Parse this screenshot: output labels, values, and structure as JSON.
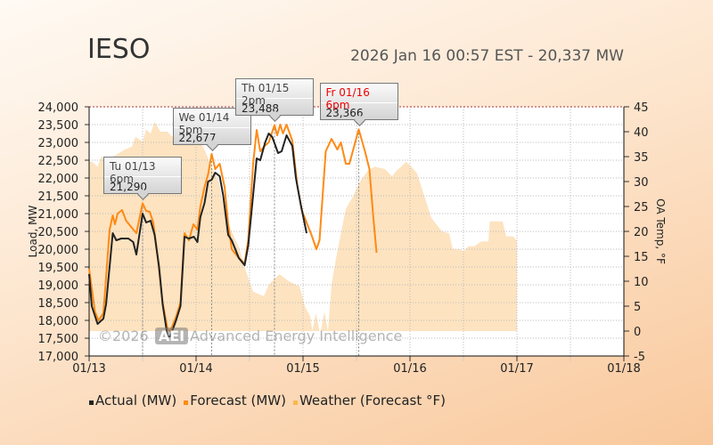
{
  "header": {
    "title": "IESO",
    "status": "2026 Jan 16 00:57 EST - 20,337 MW"
  },
  "watermark": {
    "copyright": "©2026",
    "logo": "AEI",
    "name": "Advanced Energy Intelligence"
  },
  "colors": {
    "actual": "#222222",
    "forecast": "#ff8a14",
    "weather": "#fde3c0",
    "weather_legend": "#f9b84a"
  },
  "chart_data": {
    "type": "line",
    "xlabel": "",
    "ylabel": "Load, MW",
    "y2label": "OA Temp, °F",
    "xlim": [
      0,
      120
    ],
    "ylim": [
      17000,
      24000
    ],
    "y2lim": [
      -5,
      45
    ],
    "x_ticks": [
      {
        "h": 0,
        "label": "01/13"
      },
      {
        "h": 24,
        "label": "01/14"
      },
      {
        "h": 48,
        "label": "01/15"
      },
      {
        "h": 72,
        "label": "01/16"
      },
      {
        "h": 96,
        "label": "01/17"
      },
      {
        "h": 120,
        "label": "01/18"
      }
    ],
    "y_ticks": [
      "17,000",
      "17,500",
      "18,000",
      "18,500",
      "19,000",
      "19,500",
      "20,000",
      "20,500",
      "21,000",
      "21,500",
      "22,000",
      "22,500",
      "23,000",
      "23,500",
      "24,000"
    ],
    "y_tick_values": [
      17000,
      17500,
      18000,
      18500,
      19000,
      19500,
      20000,
      20500,
      21000,
      21500,
      22000,
      22500,
      23000,
      23500,
      24000
    ],
    "y2_ticks": [
      "-5",
      "0",
      "5",
      "10",
      "15",
      "20",
      "25",
      "30",
      "35",
      "40",
      "45"
    ],
    "y2_tick_values": [
      -5,
      0,
      5,
      10,
      15,
      20,
      25,
      30,
      35,
      40,
      45
    ],
    "legend": [
      {
        "name": "Actual (MW)"
      },
      {
        "name": "Forecast (MW)"
      },
      {
        "name": "Weather (Forecast °F)"
      }
    ],
    "series": [
      {
        "name": "Actual (MW)",
        "points": [
          [
            0,
            19300
          ],
          [
            0.6,
            18400
          ],
          [
            1.9,
            17900
          ],
          [
            3.2,
            18050
          ],
          [
            3.8,
            18450
          ],
          [
            5.3,
            20450
          ],
          [
            6.1,
            20250
          ],
          [
            7.2,
            20300
          ],
          [
            8.8,
            20300
          ],
          [
            9.9,
            20200
          ],
          [
            10.6,
            19850
          ],
          [
            12,
            21000
          ],
          [
            12.8,
            20750
          ],
          [
            13.8,
            20800
          ],
          [
            14.7,
            20400
          ],
          [
            15.7,
            19500
          ],
          [
            16.5,
            18450
          ],
          [
            17.6,
            17550
          ],
          [
            18.2,
            17550
          ],
          [
            19.5,
            18000
          ],
          [
            20.5,
            18400
          ],
          [
            21.4,
            20350
          ],
          [
            22.4,
            20300
          ],
          [
            23.5,
            20350
          ],
          [
            24.3,
            20200
          ],
          [
            24.96,
            20900
          ],
          [
            25.9,
            21300
          ],
          [
            26.7,
            21900
          ],
          [
            27.5,
            21950
          ],
          [
            28.3,
            22150
          ],
          [
            29.3,
            22050
          ],
          [
            30.1,
            21500
          ],
          [
            31.2,
            20400
          ],
          [
            32,
            20250
          ],
          [
            33.6,
            19750
          ],
          [
            34.9,
            19550
          ],
          [
            35.7,
            20100
          ],
          [
            37.6,
            22550
          ],
          [
            38.4,
            22500
          ],
          [
            39.5,
            23000
          ],
          [
            40.3,
            23250
          ],
          [
            41.1,
            23150
          ],
          [
            42.4,
            22700
          ],
          [
            43.2,
            22750
          ],
          [
            44.3,
            23200
          ],
          [
            45.6,
            22900
          ],
          [
            46.4,
            22000
          ],
          [
            47.5,
            21250
          ],
          [
            48.8,
            20450
          ]
        ]
      },
      {
        "name": "Forecast (MW)",
        "points": [
          [
            0,
            19450
          ],
          [
            1.3,
            18250
          ],
          [
            2.1,
            18000
          ],
          [
            3.2,
            18200
          ],
          [
            4.6,
            20550
          ],
          [
            5.3,
            20950
          ],
          [
            5.8,
            20700
          ],
          [
            6.4,
            21000
          ],
          [
            7.4,
            21100
          ],
          [
            8.3,
            20800
          ],
          [
            9.6,
            20600
          ],
          [
            10.6,
            20450
          ],
          [
            12,
            21290
          ],
          [
            12.8,
            21075
          ],
          [
            13.6,
            21050
          ],
          [
            14.4,
            20750
          ],
          [
            15.4,
            19750
          ],
          [
            16.5,
            18500
          ],
          [
            17.6,
            17750
          ],
          [
            18.2,
            17700
          ],
          [
            19.5,
            18100
          ],
          [
            20.5,
            18500
          ],
          [
            21.4,
            20450
          ],
          [
            22.4,
            20250
          ],
          [
            23.4,
            20700
          ],
          [
            24.3,
            20550
          ],
          [
            24.96,
            21200
          ],
          [
            25.9,
            21750
          ],
          [
            26.7,
            22100
          ],
          [
            27.5,
            22677
          ],
          [
            28.3,
            22250
          ],
          [
            29.3,
            22400
          ],
          [
            30.4,
            21750
          ],
          [
            31.2,
            20700
          ],
          [
            32,
            20000
          ],
          [
            33.6,
            19750
          ],
          [
            34.9,
            19600
          ],
          [
            35.7,
            20250
          ],
          [
            36.8,
            22400
          ],
          [
            37.6,
            23350
          ],
          [
            38.4,
            22750
          ],
          [
            39.4,
            22900
          ],
          [
            40.3,
            23000
          ],
          [
            41.6,
            23488
          ],
          [
            42.2,
            23200
          ],
          [
            42.9,
            23500
          ],
          [
            43.5,
            23250
          ],
          [
            44.3,
            23500
          ],
          [
            45.6,
            23050
          ],
          [
            46.7,
            21800
          ],
          [
            47.7,
            21100
          ],
          [
            48.8,
            20750
          ],
          [
            49.9,
            20400
          ],
          [
            51,
            20000
          ],
          [
            51.7,
            20250
          ],
          [
            53.1,
            22750
          ],
          [
            54.4,
            23100
          ],
          [
            55.7,
            22800
          ],
          [
            56.5,
            23000
          ],
          [
            57.6,
            22400
          ],
          [
            58.4,
            22400
          ],
          [
            60.5,
            23366
          ],
          [
            61.9,
            22750
          ],
          [
            62.9,
            22250
          ],
          [
            63.7,
            21000
          ],
          [
            64.5,
            19900
          ]
        ]
      },
      {
        "name": "Weather (Forecast °F)",
        "points": [
          [
            0,
            34
          ],
          [
            0.6,
            34
          ],
          [
            1.9,
            33
          ],
          [
            2.7,
            35
          ],
          [
            3.5,
            34
          ],
          [
            8,
            36.4
          ],
          [
            9.6,
            37
          ],
          [
            10.4,
            39
          ],
          [
            12,
            38
          ],
          [
            12.8,
            40.5
          ],
          [
            13.8,
            39.6
          ],
          [
            14.7,
            42
          ],
          [
            16,
            40
          ],
          [
            17.6,
            40
          ],
          [
            18.6,
            39
          ],
          [
            19.5,
            40
          ],
          [
            20.8,
            40
          ],
          [
            22.4,
            39.6
          ],
          [
            25.6,
            37
          ],
          [
            27.5,
            33
          ],
          [
            29.1,
            30
          ],
          [
            30.7,
            22.7
          ],
          [
            32,
            20
          ],
          [
            33.6,
            16.8
          ],
          [
            35.2,
            12
          ],
          [
            36.8,
            7.9
          ],
          [
            39.2,
            7
          ],
          [
            40.3,
            9.3
          ],
          [
            42.7,
            11.4
          ],
          [
            44.8,
            10
          ],
          [
            47.2,
            9
          ],
          [
            48.5,
            4.8
          ],
          [
            49.6,
            3
          ],
          [
            50.1,
            0
          ],
          [
            50.9,
            3.6
          ],
          [
            51.7,
            0
          ],
          [
            52,
            0
          ],
          [
            52.8,
            3.9
          ],
          [
            53.6,
            0
          ],
          [
            54.4,
            9.3
          ],
          [
            55.4,
            14.6
          ],
          [
            57.6,
            24.5
          ],
          [
            59.2,
            27
          ],
          [
            60.8,
            30
          ],
          [
            62.4,
            32
          ],
          [
            64,
            33
          ],
          [
            66.4,
            32.5
          ],
          [
            68,
            31
          ],
          [
            68.8,
            32
          ],
          [
            71.2,
            34
          ],
          [
            72.8,
            32.5
          ],
          [
            73.6,
            31.6
          ],
          [
            76.8,
            22.7
          ],
          [
            79.2,
            20
          ],
          [
            80.8,
            19.6
          ],
          [
            81.6,
            16.4
          ],
          [
            83.2,
            16.4
          ],
          [
            84,
            16
          ],
          [
            85.1,
            17
          ],
          [
            86.4,
            17
          ],
          [
            88,
            18
          ],
          [
            89.6,
            18
          ],
          [
            89.9,
            22
          ],
          [
            92.8,
            22
          ],
          [
            93.6,
            19
          ],
          [
            95.2,
            19
          ],
          [
            96,
            18
          ]
        ]
      }
    ],
    "annotations": [
      {
        "label": "Tu 01/13 6pm",
        "value": "21,290",
        "h": 12,
        "y": 21290,
        "highlight": false
      },
      {
        "label": "We 01/14 5pm",
        "value": "22,677",
        "h": 27.5,
        "y": 22677,
        "highlight": false
      },
      {
        "label": "Th 01/15 2pm",
        "value": "23,488",
        "h": 41.6,
        "y": 23488,
        "highlight": false
      },
      {
        "label": "Fr 01/16 6pm",
        "value": "23,366",
        "h": 60.5,
        "y": 23366,
        "highlight": true
      }
    ]
  }
}
